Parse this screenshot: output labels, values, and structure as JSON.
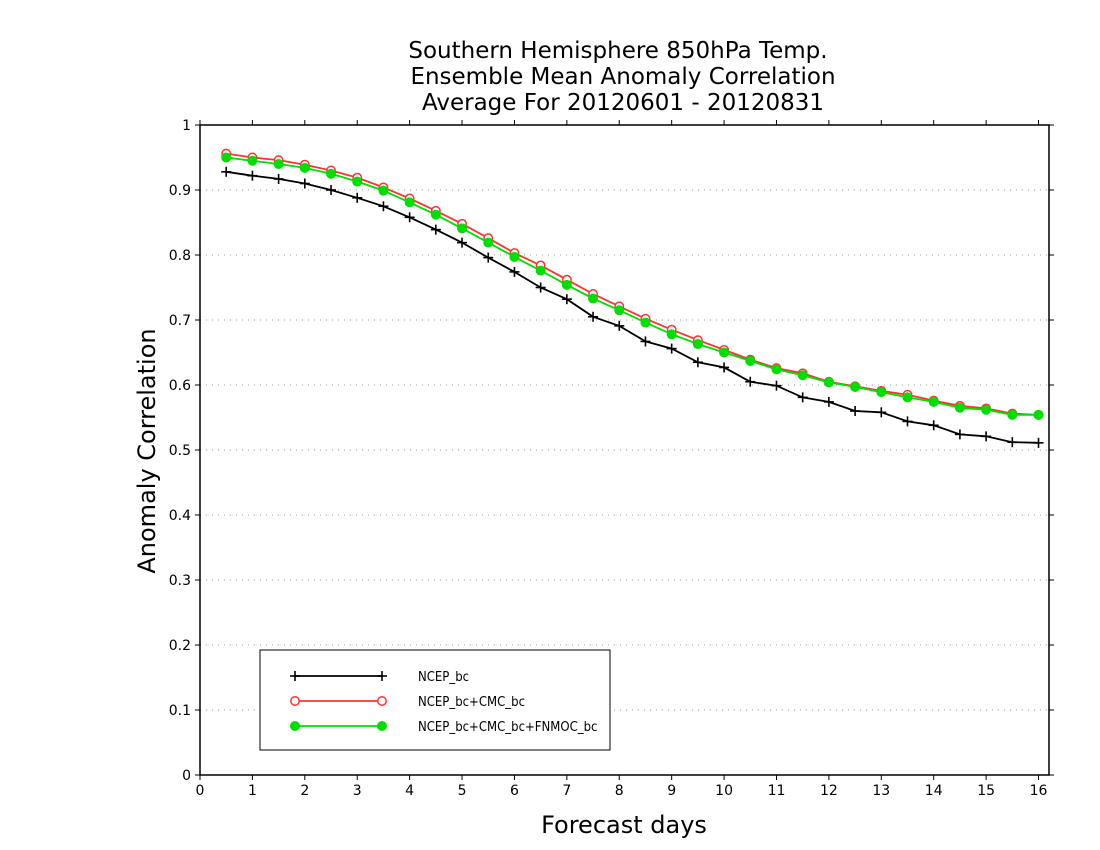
{
  "chart_data": {
    "type": "line",
    "title": [
      "Southern Hemisphere 850hPa Temp.",
      "Ensemble Mean Anomaly Correlation",
      "Average For 20120601 - 20120831"
    ],
    "xlabel": "Forecast days",
    "ylabel": "Anomaly Correlation",
    "xlim": [
      0,
      16.2
    ],
    "ylim": [
      0,
      1
    ],
    "xticks": [
      "0",
      "1",
      "2",
      "3",
      "4",
      "5",
      "6",
      "7",
      "8",
      "9",
      "10",
      "11",
      "12",
      "13",
      "14",
      "15",
      "16"
    ],
    "yticks": [
      "0",
      "0.1",
      "0.2",
      "0.3",
      "0.4",
      "0.5",
      "0.6",
      "0.7",
      "0.8",
      "0.9",
      "1"
    ],
    "grid": "dotted horizontal",
    "legend_position": "bottom-left",
    "x": [
      0.5,
      1,
      1.5,
      2,
      2.5,
      3,
      3.5,
      4,
      4.5,
      5,
      5.5,
      6,
      6.5,
      7,
      7.5,
      8,
      8.5,
      9,
      9.5,
      10,
      10.5,
      11,
      11.5,
      12,
      12.5,
      13,
      13.5,
      14,
      14.5,
      15,
      15.5,
      16
    ],
    "series": [
      {
        "name": "NCEP_bc",
        "color": "#000000",
        "marker": "plus",
        "values": [
          0.928,
          0.922,
          0.917,
          0.91,
          0.9,
          0.888,
          0.875,
          0.858,
          0.839,
          0.819,
          0.796,
          0.774,
          0.75,
          0.732,
          0.705,
          0.691,
          0.667,
          0.656,
          0.635,
          0.627,
          0.605,
          0.599,
          0.581,
          0.574,
          0.56,
          0.558,
          0.544,
          0.538,
          0.524,
          0.521,
          0.512,
          0.511
        ]
      },
      {
        "name": "NCEP_bc+CMC_bc",
        "color": "#ff3333",
        "marker": "open-circle",
        "values": [
          0.956,
          0.95,
          0.946,
          0.939,
          0.93,
          0.919,
          0.904,
          0.887,
          0.868,
          0.848,
          0.826,
          0.803,
          0.784,
          0.762,
          0.74,
          0.721,
          0.702,
          0.685,
          0.669,
          0.654,
          0.639,
          0.626,
          0.618,
          0.605,
          0.598,
          0.591,
          0.585,
          0.576,
          0.568,
          0.564,
          0.556,
          0.554
        ]
      },
      {
        "name": "NCEP_bc+CMC_bc+FNMOC_bc",
        "color": "#00dd00",
        "marker": "filled-circle",
        "values": [
          0.95,
          0.945,
          0.94,
          0.934,
          0.925,
          0.913,
          0.899,
          0.881,
          0.862,
          0.841,
          0.819,
          0.797,
          0.776,
          0.754,
          0.733,
          0.715,
          0.696,
          0.678,
          0.663,
          0.65,
          0.637,
          0.624,
          0.615,
          0.604,
          0.597,
          0.589,
          0.581,
          0.574,
          0.565,
          0.562,
          0.554,
          0.554
        ]
      }
    ]
  }
}
